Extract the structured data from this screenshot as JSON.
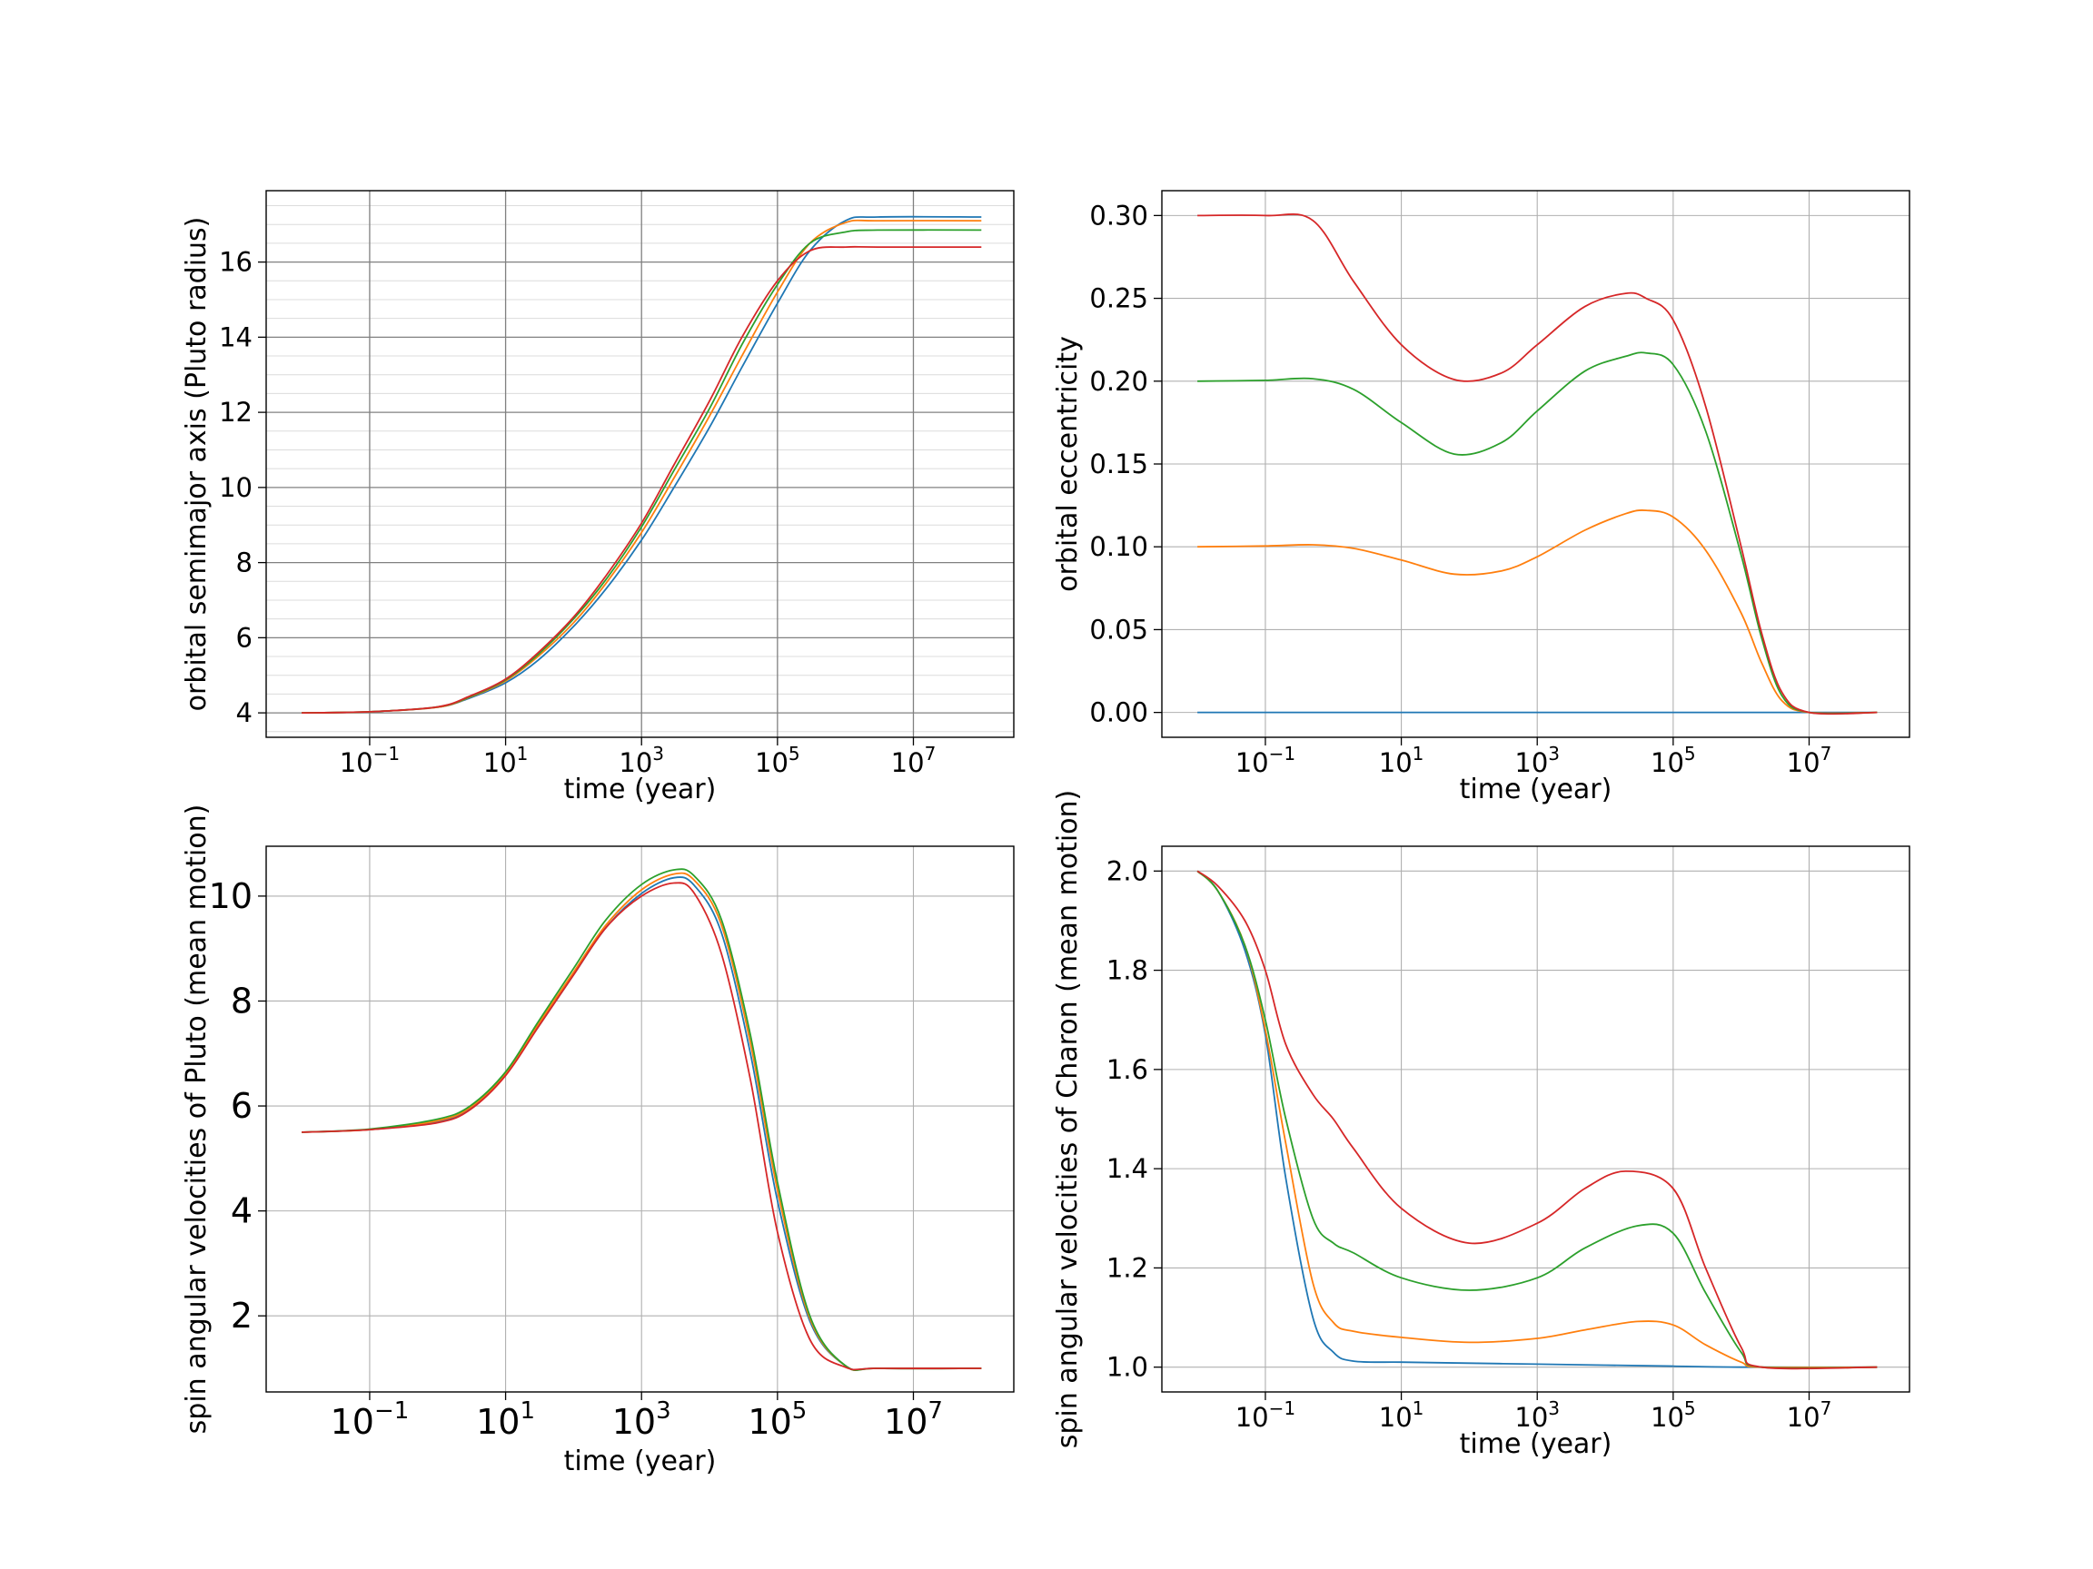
{
  "chart_data": [
    {
      "type": "line",
      "xscale": "log",
      "xlabel": "time  (year)",
      "ylabel": "orbital semimajor axis (Pluto radius)",
      "xlim": [
        0.003,
        300000000
      ],
      "ylim": [
        3.35,
        17.9
      ],
      "xticks": [
        {
          "value": 0.1,
          "base": "10",
          "exp": "−1"
        },
        {
          "value": 10,
          "base": "10",
          "exp": "1"
        },
        {
          "value": 1000,
          "base": "10",
          "exp": "3"
        },
        {
          "value": 100000,
          "base": "10",
          "exp": "5"
        },
        {
          "value": 10000000,
          "base": "10",
          "exp": "7"
        }
      ],
      "yticks": [
        4,
        6,
        8,
        10,
        12,
        14,
        16
      ],
      "ytick_labels": [
        "4",
        "6",
        "8",
        "10",
        "12",
        "14",
        "16"
      ],
      "yminor_step": 0.5,
      "grid": true,
      "series": [
        {
          "color": "#1f77b4",
          "x": [
            0.01,
            0.1,
            1,
            3,
            10,
            30,
            100,
            300,
            1000,
            3000,
            10000,
            30000,
            100000,
            300000,
            1000000,
            3000000,
            100000000
          ],
          "y": [
            4.0,
            4.03,
            4.15,
            4.4,
            4.8,
            5.4,
            6.3,
            7.3,
            8.6,
            10.0,
            11.6,
            13.2,
            14.9,
            16.3,
            17.1,
            17.2,
            17.2
          ]
        },
        {
          "color": "#ff7f0e",
          "x": [
            0.01,
            0.1,
            1,
            3,
            10,
            30,
            100,
            300,
            1000,
            3000,
            10000,
            30000,
            100000,
            300000,
            1000000,
            3000000,
            100000000
          ],
          "y": [
            4.0,
            4.03,
            4.15,
            4.42,
            4.85,
            5.5,
            6.4,
            7.45,
            8.8,
            10.25,
            11.9,
            13.5,
            15.2,
            16.5,
            17.05,
            17.1,
            17.1
          ]
        },
        {
          "color": "#2ca02c",
          "x": [
            0.01,
            0.1,
            1,
            3,
            10,
            30,
            100,
            300,
            1000,
            3000,
            10000,
            30000,
            100000,
            300000,
            1000000,
            3000000,
            100000000
          ],
          "y": [
            4.0,
            4.03,
            4.16,
            4.43,
            4.88,
            5.55,
            6.5,
            7.55,
            8.95,
            10.45,
            12.1,
            13.8,
            15.4,
            16.5,
            16.8,
            16.85,
            16.85
          ]
        },
        {
          "color": "#d62728",
          "x": [
            0.01,
            0.1,
            1,
            3,
            10,
            30,
            100,
            300,
            1000,
            3000,
            10000,
            30000,
            100000,
            300000,
            1000000,
            3000000,
            100000000
          ],
          "y": [
            4.0,
            4.03,
            4.16,
            4.45,
            4.9,
            5.6,
            6.55,
            7.65,
            9.05,
            10.6,
            12.3,
            14.0,
            15.5,
            16.3,
            16.4,
            16.4,
            16.4
          ]
        }
      ]
    },
    {
      "type": "line",
      "xscale": "log",
      "xlabel": "time  (year)",
      "ylabel": "orbital eccentricity",
      "xlim": [
        0.003,
        300000000
      ],
      "ylim": [
        -0.015,
        0.315
      ],
      "xticks": [
        {
          "value": 0.1,
          "base": "10",
          "exp": "−1"
        },
        {
          "value": 10,
          "base": "10",
          "exp": "1"
        },
        {
          "value": 1000,
          "base": "10",
          "exp": "3"
        },
        {
          "value": 100000,
          "base": "10",
          "exp": "5"
        },
        {
          "value": 10000000,
          "base": "10",
          "exp": "7"
        }
      ],
      "yticks": [
        0,
        0.05,
        0.1,
        0.15,
        0.2,
        0.25,
        0.3
      ],
      "ytick_labels": [
        "0.00",
        "0.05",
        "0.10",
        "0.15",
        "0.20",
        "0.25",
        "0.30"
      ],
      "grid": true,
      "series": [
        {
          "color": "#1f77b4",
          "x": [
            0.01,
            100000000
          ],
          "y": [
            0.0,
            0.0
          ]
        },
        {
          "color": "#ff7f0e",
          "x": [
            0.01,
            0.1,
            0.5,
            2,
            10,
            60,
            300,
            1000,
            5000,
            20000,
            40000,
            100000,
            300000,
            1000000,
            2000000,
            4000000,
            10000000,
            100000000
          ],
          "y": [
            0.1,
            0.1005,
            0.1012,
            0.099,
            0.092,
            0.0835,
            0.0855,
            0.094,
            0.11,
            0.12,
            0.122,
            0.118,
            0.098,
            0.06,
            0.03,
            0.007,
            0.0,
            0.0
          ]
        },
        {
          "color": "#2ca02c",
          "x": [
            0.01,
            0.1,
            0.5,
            2,
            10,
            60,
            300,
            1000,
            5000,
            20000,
            40000,
            100000,
            300000,
            1000000,
            2000000,
            4000000,
            10000000,
            100000000
          ],
          "y": [
            0.2,
            0.2005,
            0.2015,
            0.195,
            0.175,
            0.156,
            0.163,
            0.182,
            0.206,
            0.215,
            0.217,
            0.21,
            0.17,
            0.095,
            0.045,
            0.01,
            0.0,
            0.0
          ]
        },
        {
          "color": "#d62728",
          "x": [
            0.01,
            0.1,
            0.5,
            2,
            10,
            60,
            300,
            1000,
            5000,
            20000,
            40000,
            100000,
            300000,
            1000000,
            2000000,
            4000000,
            10000000,
            100000000
          ],
          "y": [
            0.3,
            0.3,
            0.297,
            0.26,
            0.222,
            0.201,
            0.205,
            0.222,
            0.245,
            0.253,
            0.25,
            0.237,
            0.185,
            0.1,
            0.048,
            0.012,
            0.0,
            0.0
          ]
        }
      ]
    },
    {
      "type": "line",
      "xscale": "log",
      "xlabel": "time (year)",
      "ylabel": "spin angular velocities of Pluto (mean motion)",
      "xlim": [
        0.003,
        300000000
      ],
      "ylim": [
        0.55,
        10.95
      ],
      "xticks": [
        {
          "value": 0.1,
          "base": "10",
          "exp": "−1"
        },
        {
          "value": 10,
          "base": "10",
          "exp": "1"
        },
        {
          "value": 1000,
          "base": "10",
          "exp": "3"
        },
        {
          "value": 100000,
          "base": "10",
          "exp": "5"
        },
        {
          "value": 10000000,
          "base": "10",
          "exp": "7"
        }
      ],
      "yticks": [
        2,
        4,
        6,
        8,
        10
      ],
      "ytick_labels": [
        "2",
        "4",
        "6",
        "8",
        "10"
      ],
      "large_ticks": true,
      "grid": true,
      "series": [
        {
          "color": "#1f77b4",
          "x": [
            0.01,
            0.1,
            1,
            3,
            10,
            30,
            100,
            300,
            1000,
            3000,
            6000,
            15000,
            40000,
            100000,
            300000,
            1000000,
            3000000,
            100000000
          ],
          "y": [
            5.5,
            5.55,
            5.7,
            5.95,
            6.6,
            7.5,
            8.5,
            9.4,
            10.05,
            10.35,
            10.2,
            9.3,
            7.0,
            4.2,
            1.9,
            1.05,
            1.0,
            1.0
          ]
        },
        {
          "color": "#ff7f0e",
          "x": [
            0.01,
            0.1,
            1,
            3,
            10,
            30,
            100,
            300,
            1000,
            3000,
            6000,
            15000,
            40000,
            100000,
            300000,
            1000000,
            3000000,
            100000000
          ],
          "y": [
            5.5,
            5.55,
            5.72,
            5.97,
            6.62,
            7.55,
            8.55,
            9.45,
            10.12,
            10.42,
            10.3,
            9.45,
            7.2,
            4.4,
            1.95,
            1.05,
            1.0,
            1.0
          ]
        },
        {
          "color": "#2ca02c",
          "x": [
            0.01,
            0.1,
            1,
            3,
            10,
            30,
            100,
            300,
            1000,
            3000,
            6000,
            15000,
            40000,
            100000,
            300000,
            1000000,
            3000000,
            100000000
          ],
          "y": [
            5.5,
            5.56,
            5.75,
            6.0,
            6.65,
            7.6,
            8.62,
            9.55,
            10.22,
            10.5,
            10.38,
            9.55,
            7.35,
            4.55,
            2.0,
            1.05,
            1.0,
            1.0
          ]
        },
        {
          "color": "#d62728",
          "x": [
            0.01,
            0.1,
            1,
            3,
            10,
            30,
            100,
            300,
            1000,
            3000,
            6000,
            15000,
            40000,
            100000,
            300000,
            1000000,
            3000000,
            100000000
          ],
          "y": [
            5.5,
            5.55,
            5.68,
            5.93,
            6.58,
            7.5,
            8.5,
            9.4,
            10.0,
            10.25,
            10.05,
            8.9,
            6.5,
            3.6,
            1.55,
            1.02,
            1.0,
            1.0
          ]
        }
      ]
    },
    {
      "type": "line",
      "xscale": "log",
      "xlabel": "time  (year)",
      "ylabel": "spin angular velocities of Charon (mean motion)",
      "xlim": [
        0.003,
        300000000
      ],
      "ylim": [
        0.95,
        2.05
      ],
      "xticks": [
        {
          "value": 0.1,
          "base": "10",
          "exp": "−1"
        },
        {
          "value": 10,
          "base": "10",
          "exp": "1"
        },
        {
          "value": 1000,
          "base": "10",
          "exp": "3"
        },
        {
          "value": 100000,
          "base": "10",
          "exp": "5"
        },
        {
          "value": 10000000,
          "base": "10",
          "exp": "7"
        }
      ],
      "yticks": [
        1.0,
        1.2,
        1.4,
        1.6,
        1.8,
        2.0
      ],
      "ytick_labels": [
        "1.0",
        "1.2",
        "1.4",
        "1.6",
        "1.8",
        "2.0"
      ],
      "grid": true,
      "series": [
        {
          "color": "#1f77b4",
          "x": [
            0.01,
            0.02,
            0.05,
            0.1,
            0.2,
            0.5,
            1,
            2,
            10,
            100,
            1000,
            10000,
            100000,
            1000000,
            100000000
          ],
          "y": [
            2.0,
            1.96,
            1.84,
            1.67,
            1.38,
            1.1,
            1.03,
            1.012,
            1.01,
            1.008,
            1.006,
            1.004,
            1.002,
            1.0,
            1.0
          ]
        },
        {
          "color": "#ff7f0e",
          "x": [
            0.01,
            0.02,
            0.05,
            0.1,
            0.2,
            0.5,
            1,
            2,
            10,
            100,
            1000,
            5000,
            30000,
            100000,
            300000,
            1000000,
            2000000,
            100000000
          ],
          "y": [
            2.0,
            1.96,
            1.85,
            1.68,
            1.45,
            1.17,
            1.09,
            1.072,
            1.06,
            1.05,
            1.058,
            1.075,
            1.092,
            1.085,
            1.045,
            1.01,
            1.0,
            1.0
          ]
        },
        {
          "color": "#2ca02c",
          "x": [
            0.01,
            0.02,
            0.05,
            0.1,
            0.2,
            0.5,
            1,
            2,
            10,
            100,
            1000,
            5000,
            30000,
            100000,
            300000,
            1000000,
            2000000,
            100000000
          ],
          "y": [
            2.0,
            1.96,
            1.85,
            1.7,
            1.5,
            1.3,
            1.25,
            1.23,
            1.18,
            1.155,
            1.18,
            1.24,
            1.285,
            1.27,
            1.15,
            1.03,
            1.0,
            1.0
          ]
        },
        {
          "color": "#d62728",
          "x": [
            0.01,
            0.02,
            0.05,
            0.1,
            0.2,
            0.5,
            1,
            2,
            10,
            100,
            1000,
            5000,
            20000,
            100000,
            300000,
            1000000,
            2000000,
            100000000
          ],
          "y": [
            2.0,
            1.97,
            1.9,
            1.8,
            1.65,
            1.55,
            1.5,
            1.44,
            1.32,
            1.25,
            1.29,
            1.36,
            1.395,
            1.36,
            1.2,
            1.04,
            1.0,
            1.0
          ]
        }
      ]
    }
  ]
}
